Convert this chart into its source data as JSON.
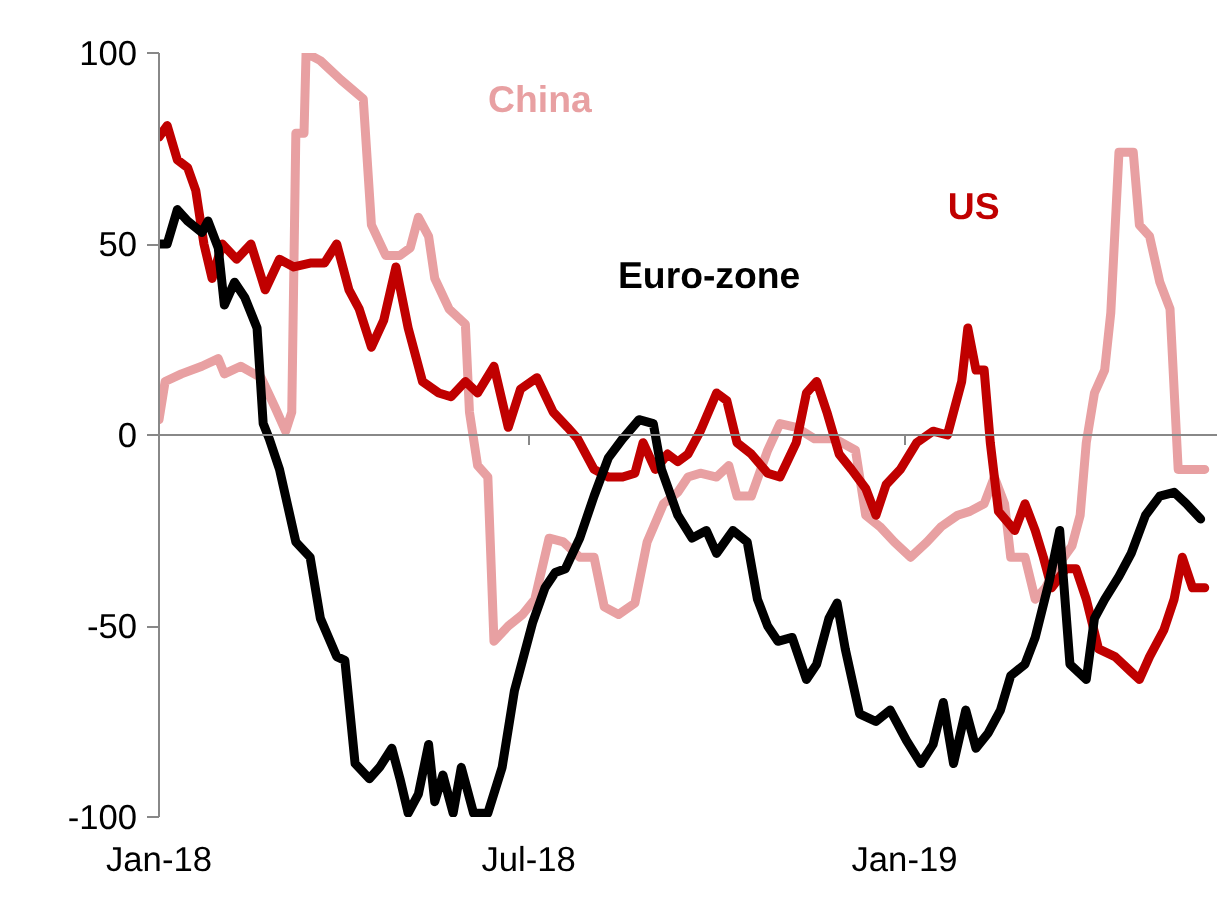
{
  "chart_data": {
    "type": "line",
    "xlim": [
      "2018-01-01",
      "2019-06-03"
    ],
    "ylim": [
      -100,
      100
    ],
    "xticks": [
      {
        "value": "2018-01-01",
        "label": "Jan-18"
      },
      {
        "value": "2018-07-01",
        "label": "Jul-18"
      },
      {
        "value": "2019-01-01",
        "label": "Jan-19"
      }
    ],
    "yticks": [
      -100,
      -50,
      0,
      50,
      100
    ],
    "marker": "none",
    "line_style": "solid",
    "series": [
      {
        "name": "China",
        "color": "#e8a0a2",
        "x": [
          "2018-01-01",
          "2018-01-04",
          "2018-01-12",
          "2018-01-22",
          "2018-01-30",
          "2018-02-02",
          "2018-02-10",
          "2018-02-20",
          "2018-02-27",
          "2018-03-04",
          "2018-03-07",
          "2018-03-09",
          "2018-03-13",
          "2018-03-14",
          "2018-03-21",
          "2018-03-31",
          "2018-04-11",
          "2018-04-15",
          "2018-04-22",
          "2018-04-29",
          "2018-05-04",
          "2018-05-08",
          "2018-05-13",
          "2018-05-16",
          "2018-05-23",
          "2018-05-31",
          "2018-06-02",
          "2018-06-06",
          "2018-06-11",
          "2018-06-14",
          "2018-06-21",
          "2018-06-28",
          "2018-07-04",
          "2018-07-11",
          "2018-07-18",
          "2018-07-26",
          "2018-08-02",
          "2018-08-07",
          "2018-08-14",
          "2018-08-22",
          "2018-08-28",
          "2018-09-05",
          "2018-09-12",
          "2018-09-17",
          "2018-09-23",
          "2018-10-01",
          "2018-10-07",
          "2018-10-11",
          "2018-10-18",
          "2018-10-26",
          "2018-11-01",
          "2018-11-09",
          "2018-11-18",
          "2018-11-28",
          "2018-12-08",
          "2018-12-13",
          "2018-12-20",
          "2018-12-27",
          "2019-01-04",
          "2019-01-12",
          "2019-01-19",
          "2019-01-27",
          "2019-02-02",
          "2019-02-09",
          "2019-02-14",
          "2019-02-19",
          "2019-02-22",
          "2019-03-01",
          "2019-03-06",
          "2019-03-11",
          "2019-03-16",
          "2019-03-24",
          "2019-03-28",
          "2019-03-31",
          "2019-04-04",
          "2019-04-09",
          "2019-04-12",
          "2019-04-16",
          "2019-04-23",
          "2019-04-26",
          "2019-05-01",
          "2019-05-06",
          "2019-05-11",
          "2019-05-15",
          "2019-05-22",
          "2019-05-28"
        ],
        "values": [
          4,
          14,
          16,
          18,
          20,
          16,
          18,
          15,
          7,
          1,
          6,
          79,
          79,
          100,
          98,
          93,
          88,
          55,
          47,
          47,
          49,
          57,
          52,
          41,
          33,
          29,
          6,
          -8,
          -11,
          -54,
          -50,
          -47,
          -43,
          -27,
          -28,
          -32,
          -32,
          -45,
          -47,
          -44,
          -28,
          -18,
          -15,
          -11,
          -10,
          -11,
          -8,
          -16,
          -16,
          -4,
          3,
          2,
          -1,
          -1,
          -4,
          -21,
          -24,
          -28,
          -32,
          -28,
          -24,
          -21,
          -20,
          -18,
          -11,
          -18,
          -32,
          -32,
          -43,
          -40,
          -35,
          -29,
          -21,
          -2,
          11,
          17,
          32,
          74,
          74,
          55,
          52,
          40,
          33,
          -9,
          -9,
          -9
        ]
      },
      {
        "name": "US",
        "color": "#c00000",
        "x": [
          "2018-01-01",
          "2018-01-05",
          "2018-01-10",
          "2018-01-15",
          "2018-01-19",
          "2018-01-23",
          "2018-01-27",
          "2018-02-01",
          "2018-02-08",
          "2018-02-15",
          "2018-02-22",
          "2018-03-01",
          "2018-03-08",
          "2018-03-16",
          "2018-03-23",
          "2018-03-29",
          "2018-04-04",
          "2018-04-09",
          "2018-04-15",
          "2018-04-21",
          "2018-04-27",
          "2018-05-03",
          "2018-05-10",
          "2018-05-18",
          "2018-05-24",
          "2018-05-31",
          "2018-06-06",
          "2018-06-14",
          "2018-06-21",
          "2018-06-27",
          "2018-07-05",
          "2018-07-13",
          "2018-07-20",
          "2018-07-25",
          "2018-08-02",
          "2018-08-09",
          "2018-08-16",
          "2018-08-22",
          "2018-08-26",
          "2018-09-01",
          "2018-09-07",
          "2018-09-12",
          "2018-09-17",
          "2018-09-23",
          "2018-10-01",
          "2018-10-06",
          "2018-10-11",
          "2018-10-18",
          "2018-10-26",
          "2018-11-01",
          "2018-11-09",
          "2018-11-14",
          "2018-11-19",
          "2018-11-24",
          "2018-11-30",
          "2018-12-06",
          "2018-12-13",
          "2018-12-18",
          "2018-12-23",
          "2018-12-30",
          "2019-01-07",
          "2019-01-15",
          "2019-01-22",
          "2019-01-29",
          "2019-02-01",
          "2019-02-05",
          "2019-02-09",
          "2019-02-12",
          "2019-02-16",
          "2019-02-24",
          "2019-03-01",
          "2019-03-06",
          "2019-03-10",
          "2019-03-14",
          "2019-03-21",
          "2019-03-26",
          "2019-03-31",
          "2019-04-06",
          "2019-04-14",
          "2019-04-22",
          "2019-04-26",
          "2019-05-01",
          "2019-05-08",
          "2019-05-13",
          "2019-05-17",
          "2019-05-22",
          "2019-05-28"
        ],
        "values": [
          78,
          81,
          72,
          70,
          64,
          50,
          41,
          50,
          46,
          50,
          38,
          46,
          44,
          45,
          45,
          50,
          38,
          33,
          23,
          30,
          44,
          28,
          14,
          11,
          10,
          14,
          11,
          18,
          2,
          12,
          15,
          6,
          2,
          -1,
          -9,
          -11,
          -11,
          -10,
          -2,
          -9,
          -5,
          -7,
          -5,
          1,
          11,
          9,
          -2,
          -5,
          -10,
          -11,
          -2,
          11,
          14,
          6,
          -5,
          -9,
          -14,
          -21,
          -13,
          -9,
          -2,
          1,
          0,
          14,
          28,
          17,
          17,
          -2,
          -20,
          -25,
          -18,
          -25,
          -32,
          -40,
          -35,
          -35,
          -43,
          -56,
          -58,
          -62,
          -64,
          -58,
          -51,
          -43,
          -32,
          -40,
          -40
        ]
      },
      {
        "name": "Euro-zone",
        "color": "#000000",
        "x": [
          "2018-01-01",
          "2018-01-05",
          "2018-01-10",
          "2018-01-15",
          "2018-01-22",
          "2018-01-25",
          "2018-01-30",
          "2018-02-02",
          "2018-02-07",
          "2018-02-12",
          "2018-02-18",
          "2018-02-21",
          "2018-02-24",
          "2018-03-01",
          "2018-03-09",
          "2018-03-16",
          "2018-03-21",
          "2018-03-29",
          "2018-04-02",
          "2018-04-07",
          "2018-04-14",
          "2018-04-19",
          "2018-04-25",
          "2018-04-29",
          "2018-05-03",
          "2018-05-08",
          "2018-05-13",
          "2018-05-16",
          "2018-05-20",
          "2018-05-25",
          "2018-05-29",
          "2018-06-04",
          "2018-06-11",
          "2018-06-18",
          "2018-06-24",
          "2018-06-28",
          "2018-07-03",
          "2018-07-09",
          "2018-07-14",
          "2018-07-19",
          "2018-07-26",
          "2018-08-02",
          "2018-08-09",
          "2018-08-16",
          "2018-08-24",
          "2018-08-31",
          "2018-09-04",
          "2018-09-12",
          "2018-09-19",
          "2018-09-26",
          "2018-10-01",
          "2018-10-09",
          "2018-10-16",
          "2018-10-21",
          "2018-10-26",
          "2018-10-31",
          "2018-11-07",
          "2018-11-14",
          "2018-11-19",
          "2018-11-25",
          "2018-11-29",
          "2018-12-03",
          "2018-12-10",
          "2018-12-18",
          "2018-12-25",
          "2019-01-02",
          "2019-01-09",
          "2019-01-15",
          "2019-01-20",
          "2019-01-25",
          "2019-01-31",
          "2019-02-05",
          "2019-02-11",
          "2019-02-17",
          "2019-02-22",
          "2019-03-01",
          "2019-03-06",
          "2019-03-13",
          "2019-03-18",
          "2019-03-23",
          "2019-03-31",
          "2019-04-04",
          "2019-04-09",
          "2019-04-16",
          "2019-04-22",
          "2019-04-29",
          "2019-05-06",
          "2019-05-13",
          "2019-05-19",
          "2019-05-26"
        ],
        "values": [
          50,
          50,
          59,
          56,
          53,
          56,
          49,
          34,
          40,
          36,
          28,
          3,
          -1,
          -9,
          -28,
          -32,
          -48,
          -58,
          -59,
          -86,
          -90,
          -87,
          -82,
          -90,
          -99,
          -94,
          -81,
          -96,
          -89,
          -99,
          -87,
          -99,
          -99,
          -87,
          -67,
          -59,
          -49,
          -40,
          -36,
          -35,
          -27,
          -16,
          -6,
          -1,
          4,
          3,
          -9,
          -21,
          -27,
          -25,
          -31,
          -25,
          -28,
          -43,
          -50,
          -54,
          -53,
          -64,
          -60,
          -48,
          -44,
          -56,
          -73,
          -75,
          -72,
          -80,
          -86,
          -81,
          -70,
          -86,
          -72,
          -82,
          -78,
          -72,
          -63,
          -60,
          -53,
          -38,
          -25,
          -60,
          -64,
          -48,
          -43,
          -37,
          -31,
          -21,
          -16,
          -15,
          -18,
          -22
        ]
      }
    ]
  }
}
